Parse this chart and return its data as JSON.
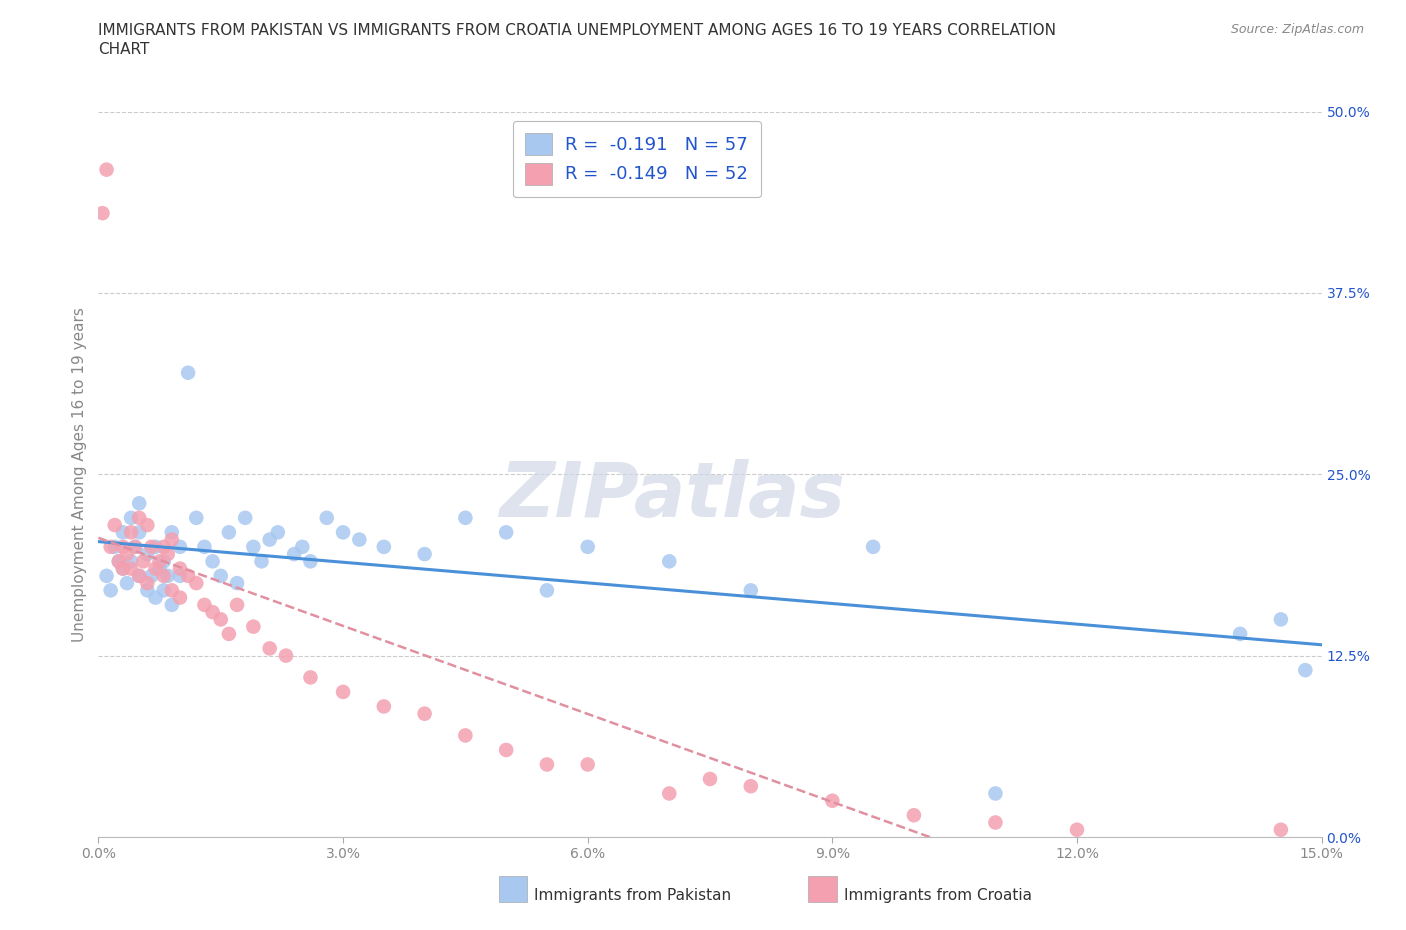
{
  "title_line1": "IMMIGRANTS FROM PAKISTAN VS IMMIGRANTS FROM CROATIA UNEMPLOYMENT AMONG AGES 16 TO 19 YEARS CORRELATION",
  "title_line2": "CHART",
  "source": "Source: ZipAtlas.com",
  "ylabel": "Unemployment Among Ages 16 to 19 years",
  "xlabel_ticks": [
    "0.0%",
    "3.0%",
    "6.0%",
    "9.0%",
    "12.0%",
    "15.0%"
  ],
  "xlabel_vals": [
    0.0,
    3.0,
    6.0,
    9.0,
    12.0,
    15.0
  ],
  "ytick_vals": [
    0.0,
    12.5,
    25.0,
    37.5,
    50.0
  ],
  "xlim": [
    0.0,
    15.0
  ],
  "ylim": [
    0.0,
    50.0
  ],
  "pakistan_color": "#a8c8f0",
  "croatia_color": "#f4a0b0",
  "pakistan_R": -0.191,
  "pakistan_N": 57,
  "croatia_R": -0.149,
  "croatia_N": 52,
  "regression_color_pakistan": "#4a90d9",
  "regression_color_croatia": "#e090a0",
  "watermark": "ZIPatlas",
  "pakistan_x": [
    0.1,
    0.15,
    0.2,
    0.25,
    0.3,
    0.3,
    0.35,
    0.4,
    0.4,
    0.45,
    0.5,
    0.5,
    0.5,
    0.6,
    0.6,
    0.65,
    0.7,
    0.7,
    0.75,
    0.8,
    0.8,
    0.85,
    0.9,
    0.9,
    1.0,
    1.0,
    1.1,
    1.2,
    1.3,
    1.4,
    1.5,
    1.6,
    1.7,
    1.8,
    1.9,
    2.0,
    2.1,
    2.2,
    2.4,
    2.5,
    2.6,
    2.8,
    3.0,
    3.2,
    3.5,
    4.0,
    4.5,
    5.0,
    5.5,
    6.0,
    7.0,
    8.0,
    9.5,
    11.0,
    14.0,
    14.5,
    14.8
  ],
  "pakistan_y": [
    18.0,
    17.0,
    20.0,
    19.0,
    18.5,
    21.0,
    17.5,
    22.0,
    19.0,
    20.0,
    18.0,
    21.0,
    23.0,
    17.0,
    19.5,
    18.0,
    20.0,
    16.5,
    18.5,
    17.0,
    19.0,
    18.0,
    21.0,
    16.0,
    18.0,
    20.0,
    32.0,
    22.0,
    20.0,
    19.0,
    18.0,
    21.0,
    17.5,
    22.0,
    20.0,
    19.0,
    20.5,
    21.0,
    19.5,
    20.0,
    19.0,
    22.0,
    21.0,
    20.5,
    20.0,
    19.5,
    22.0,
    21.0,
    17.0,
    20.0,
    19.0,
    17.0,
    20.0,
    3.0,
    14.0,
    15.0,
    11.5
  ],
  "croatia_x": [
    0.05,
    0.1,
    0.15,
    0.2,
    0.25,
    0.3,
    0.3,
    0.35,
    0.4,
    0.4,
    0.45,
    0.5,
    0.5,
    0.55,
    0.6,
    0.6,
    0.65,
    0.7,
    0.75,
    0.8,
    0.8,
    0.85,
    0.9,
    0.9,
    1.0,
    1.0,
    1.1,
    1.2,
    1.3,
    1.4,
    1.5,
    1.6,
    1.7,
    1.9,
    2.1,
    2.3,
    2.6,
    3.0,
    3.5,
    4.0,
    4.5,
    5.0,
    5.5,
    6.0,
    7.0,
    7.5,
    8.0,
    9.0,
    10.0,
    11.0,
    12.0,
    14.5
  ],
  "croatia_y": [
    43.0,
    46.0,
    20.0,
    21.5,
    19.0,
    18.5,
    20.0,
    19.5,
    21.0,
    18.5,
    20.0,
    18.0,
    22.0,
    19.0,
    21.5,
    17.5,
    20.0,
    18.5,
    19.0,
    20.0,
    18.0,
    19.5,
    20.5,
    17.0,
    18.5,
    16.5,
    18.0,
    17.5,
    16.0,
    15.5,
    15.0,
    14.0,
    16.0,
    14.5,
    13.0,
    12.5,
    11.0,
    10.0,
    9.0,
    8.5,
    7.0,
    6.0,
    5.0,
    5.0,
    3.0,
    4.0,
    3.5,
    2.5,
    1.5,
    1.0,
    0.5,
    0.5
  ],
  "background_color": "#ffffff",
  "grid_color": "#cccccc",
  "legend_color": "#2255cc",
  "title_color": "#333333",
  "tick_color": "#888888"
}
